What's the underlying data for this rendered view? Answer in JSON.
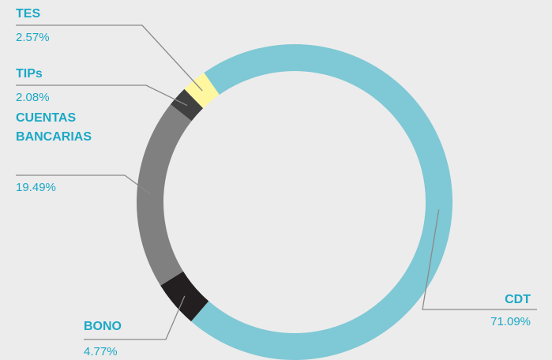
{
  "chart_data": {
    "type": "pie",
    "donut": true,
    "categories": [
      "CDT",
      "BONO",
      "CUENTAS BANCARIAS",
      "TIPs",
      "TES"
    ],
    "values": [
      71.09,
      4.77,
      19.49,
      2.08,
      2.57
    ],
    "labels": [
      {
        "name_lines": [
          "CDT"
        ],
        "value": "71.09%"
      },
      {
        "name_lines": [
          "BONO"
        ],
        "value": "4.77%"
      },
      {
        "name_lines": [
          "CUENTAS",
          "BANCARIAS"
        ],
        "value": "19.49%"
      },
      {
        "name_lines": [
          "TIPs"
        ],
        "value": "2.08%"
      },
      {
        "name_lines": [
          "TES"
        ],
        "value": "2.57%"
      }
    ],
    "colors": [
      "#7fc8d5",
      "#231f20",
      "#808080",
      "#404040",
      "#fff7a0"
    ],
    "label_color": "#1ba8c6",
    "legend": "none"
  }
}
